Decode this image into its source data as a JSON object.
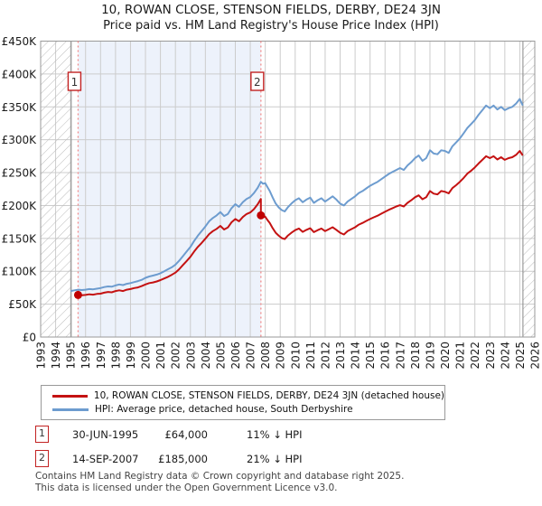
{
  "chart_data": {
    "type": "line",
    "title": "10, ROWAN CLOSE, STENSON FIELDS, DERBY, DE24 3JN",
    "subtitle": "Price paid vs. HM Land Registry's House Price Index (HPI)",
    "x_range": [
      1993,
      2026
    ],
    "y_range_gbp": [
      0,
      450000
    ],
    "grid": true,
    "legend_position": "bottom",
    "units": "series point values are GBP thousands",
    "x_tick_labels": [
      "1993",
      "1994",
      "1995",
      "1996",
      "1997",
      "1998",
      "1999",
      "2000",
      "2001",
      "2002",
      "2003",
      "2004",
      "2005",
      "2006",
      "2007",
      "2008",
      "2009",
      "2010",
      "2011",
      "2012",
      "2013",
      "2014",
      "2015",
      "2016",
      "2017",
      "2018",
      "2019",
      "2020",
      "2021",
      "2022",
      "2023",
      "2024",
      "2025",
      "2026"
    ],
    "y_tick_labels": [
      "£0",
      "£50K",
      "£100K",
      "£150K",
      "£200K",
      "£250K",
      "£300K",
      "£350K",
      "£400K",
      "£450K"
    ],
    "y_tick_step_thousands": 50,
    "series": [
      {
        "name": "10, ROWAN CLOSE, STENSON FIELDS, DERBY, DE24 3JN (detached house)",
        "color": "#c41212",
        "points": [
          [
            1995.5,
            64
          ],
          [
            1995.75,
            63.5
          ],
          [
            1996.0,
            64
          ],
          [
            1996.25,
            65
          ],
          [
            1996.5,
            64.5
          ],
          [
            1996.75,
            65.5
          ],
          [
            1997.0,
            66
          ],
          [
            1997.25,
            67.5
          ],
          [
            1997.5,
            68.5
          ],
          [
            1997.75,
            68
          ],
          [
            1998.0,
            70
          ],
          [
            1998.25,
            71
          ],
          [
            1998.5,
            70
          ],
          [
            1998.75,
            72
          ],
          [
            1999.0,
            73
          ],
          [
            1999.25,
            74.5
          ],
          [
            1999.5,
            75.5
          ],
          [
            1999.75,
            77.5
          ],
          [
            2000.0,
            80
          ],
          [
            2000.25,
            82
          ],
          [
            2000.5,
            83
          ],
          [
            2000.75,
            84.5
          ],
          [
            2001.0,
            86.5
          ],
          [
            2001.25,
            89
          ],
          [
            2001.5,
            91.5
          ],
          [
            2001.75,
            94.5
          ],
          [
            2002.0,
            98
          ],
          [
            2002.25,
            103
          ],
          [
            2002.5,
            109.5
          ],
          [
            2002.75,
            115.5
          ],
          [
            2003.0,
            122
          ],
          [
            2003.25,
            130
          ],
          [
            2003.5,
            137
          ],
          [
            2003.75,
            143
          ],
          [
            2004.0,
            149.5
          ],
          [
            2004.25,
            156.5
          ],
          [
            2004.5,
            161
          ],
          [
            2004.75,
            164.5
          ],
          [
            2005.0,
            169
          ],
          [
            2005.25,
            163.5
          ],
          [
            2005.5,
            166.5
          ],
          [
            2005.75,
            174.5
          ],
          [
            2006.0,
            179.5
          ],
          [
            2006.25,
            176
          ],
          [
            2006.5,
            182.5
          ],
          [
            2006.75,
            187
          ],
          [
            2007.0,
            189.5
          ],
          [
            2007.25,
            194.5
          ],
          [
            2007.5,
            202
          ],
          [
            2007.71,
            210
          ],
          [
            2007.71,
            185
          ],
          [
            2007.85,
            182
          ],
          [
            2008.0,
            183
          ],
          [
            2008.15,
            178
          ],
          [
            2008.3,
            173.5
          ],
          [
            2008.5,
            165.5
          ],
          [
            2008.7,
            158.5
          ],
          [
            2008.9,
            154
          ],
          [
            2009.1,
            150.5
          ],
          [
            2009.3,
            149
          ],
          [
            2009.5,
            154
          ],
          [
            2009.75,
            158.5
          ],
          [
            2010.0,
            162.5
          ],
          [
            2010.25,
            165
          ],
          [
            2010.5,
            160
          ],
          [
            2010.75,
            163
          ],
          [
            2011.0,
            165.5
          ],
          [
            2011.25,
            159.5
          ],
          [
            2011.5,
            162.5
          ],
          [
            2011.75,
            165
          ],
          [
            2012.0,
            161
          ],
          [
            2012.25,
            164
          ],
          [
            2012.5,
            167
          ],
          [
            2012.75,
            163
          ],
          [
            2013.0,
            158.5
          ],
          [
            2013.25,
            156
          ],
          [
            2013.5,
            161
          ],
          [
            2013.75,
            164
          ],
          [
            2014.0,
            167
          ],
          [
            2014.25,
            171
          ],
          [
            2014.5,
            173.5
          ],
          [
            2014.75,
            176.5
          ],
          [
            2015.0,
            179.5
          ],
          [
            2015.25,
            182
          ],
          [
            2015.5,
            184.5
          ],
          [
            2015.75,
            187.5
          ],
          [
            2016.0,
            190.5
          ],
          [
            2016.25,
            193.5
          ],
          [
            2016.5,
            196
          ],
          [
            2016.75,
            198.5
          ],
          [
            2017.0,
            200.5
          ],
          [
            2017.25,
            198.5
          ],
          [
            2017.5,
            204
          ],
          [
            2017.75,
            208
          ],
          [
            2018.0,
            212.5
          ],
          [
            2018.25,
            215.5
          ],
          [
            2018.5,
            209.5
          ],
          [
            2018.75,
            212.5
          ],
          [
            2019.0,
            222
          ],
          [
            2019.25,
            218
          ],
          [
            2019.5,
            217
          ],
          [
            2019.75,
            222
          ],
          [
            2020.0,
            221
          ],
          [
            2020.25,
            218.5
          ],
          [
            2020.5,
            226.5
          ],
          [
            2020.75,
            231
          ],
          [
            2021.0,
            236
          ],
          [
            2021.25,
            242
          ],
          [
            2021.5,
            248.5
          ],
          [
            2021.75,
            253
          ],
          [
            2022.0,
            258
          ],
          [
            2022.25,
            264
          ],
          [
            2022.5,
            269.5
          ],
          [
            2022.75,
            275
          ],
          [
            2023.0,
            272
          ],
          [
            2023.25,
            275
          ],
          [
            2023.5,
            270
          ],
          [
            2023.75,
            273.5
          ],
          [
            2024.0,
            269.5
          ],
          [
            2024.25,
            272
          ],
          [
            2024.5,
            273.5
          ],
          [
            2024.75,
            277
          ],
          [
            2025.0,
            283
          ],
          [
            2025.2,
            276
          ]
        ]
      },
      {
        "name": "HPI: Average price, detached house, South Derbyshire",
        "color": "#6d9ccf",
        "points": [
          [
            1995.0,
            70
          ],
          [
            1995.25,
            71
          ],
          [
            1995.5,
            72
          ],
          [
            1995.75,
            71.5
          ],
          [
            1996.0,
            72
          ],
          [
            1996.25,
            73
          ],
          [
            1996.5,
            72.5
          ],
          [
            1996.75,
            73.5
          ],
          [
            1997.0,
            74.5
          ],
          [
            1997.25,
            76
          ],
          [
            1997.5,
            77
          ],
          [
            1997.75,
            76.5
          ],
          [
            1998.0,
            78.5
          ],
          [
            1998.25,
            80
          ],
          [
            1998.5,
            79
          ],
          [
            1998.75,
            81
          ],
          [
            1999.0,
            82
          ],
          [
            1999.25,
            83.5
          ],
          [
            1999.5,
            85
          ],
          [
            1999.75,
            87
          ],
          [
            2000.0,
            90
          ],
          [
            2000.25,
            92
          ],
          [
            2000.5,
            93.5
          ],
          [
            2000.75,
            95
          ],
          [
            2001.0,
            97
          ],
          [
            2001.25,
            100
          ],
          [
            2001.5,
            103
          ],
          [
            2001.75,
            106
          ],
          [
            2002.0,
            110
          ],
          [
            2002.25,
            116
          ],
          [
            2002.5,
            123
          ],
          [
            2002.75,
            130
          ],
          [
            2003.0,
            137
          ],
          [
            2003.25,
            146
          ],
          [
            2003.5,
            154
          ],
          [
            2003.75,
            161
          ],
          [
            2004.0,
            168
          ],
          [
            2004.25,
            176
          ],
          [
            2004.5,
            181
          ],
          [
            2004.75,
            185
          ],
          [
            2005.0,
            190
          ],
          [
            2005.25,
            184
          ],
          [
            2005.5,
            187
          ],
          [
            2005.75,
            196
          ],
          [
            2006.0,
            202
          ],
          [
            2006.25,
            198
          ],
          [
            2006.5,
            205
          ],
          [
            2006.75,
            210
          ],
          [
            2007.0,
            213
          ],
          [
            2007.25,
            219
          ],
          [
            2007.5,
            227
          ],
          [
            2007.71,
            236
          ],
          [
            2007.85,
            233
          ],
          [
            2008.0,
            234
          ],
          [
            2008.15,
            228
          ],
          [
            2008.3,
            222
          ],
          [
            2008.5,
            212
          ],
          [
            2008.7,
            203
          ],
          [
            2008.9,
            197
          ],
          [
            2009.1,
            193
          ],
          [
            2009.3,
            191
          ],
          [
            2009.5,
            197
          ],
          [
            2009.75,
            203
          ],
          [
            2010.0,
            208
          ],
          [
            2010.25,
            211
          ],
          [
            2010.5,
            205
          ],
          [
            2010.75,
            209
          ],
          [
            2011.0,
            212
          ],
          [
            2011.25,
            204
          ],
          [
            2011.5,
            208
          ],
          [
            2011.75,
            211
          ],
          [
            2012.0,
            206
          ],
          [
            2012.25,
            210
          ],
          [
            2012.5,
            214
          ],
          [
            2012.75,
            209
          ],
          [
            2013.0,
            203
          ],
          [
            2013.25,
            200
          ],
          [
            2013.5,
            206
          ],
          [
            2013.75,
            210
          ],
          [
            2014.0,
            214
          ],
          [
            2014.25,
            219
          ],
          [
            2014.5,
            222
          ],
          [
            2014.75,
            226
          ],
          [
            2015.0,
            230
          ],
          [
            2015.25,
            233
          ],
          [
            2015.5,
            236
          ],
          [
            2015.75,
            240
          ],
          [
            2016.0,
            244
          ],
          [
            2016.25,
            248
          ],
          [
            2016.5,
            251
          ],
          [
            2016.75,
            254
          ],
          [
            2017.0,
            257
          ],
          [
            2017.25,
            254
          ],
          [
            2017.5,
            261
          ],
          [
            2017.75,
            266
          ],
          [
            2018.0,
            272
          ],
          [
            2018.25,
            276
          ],
          [
            2018.5,
            268
          ],
          [
            2018.75,
            272
          ],
          [
            2019.0,
            284
          ],
          [
            2019.25,
            279
          ],
          [
            2019.5,
            278
          ],
          [
            2019.75,
            284
          ],
          [
            2020.0,
            283
          ],
          [
            2020.25,
            280
          ],
          [
            2020.5,
            290
          ],
          [
            2020.75,
            296
          ],
          [
            2021.0,
            302
          ],
          [
            2021.25,
            310
          ],
          [
            2021.5,
            318
          ],
          [
            2021.75,
            324
          ],
          [
            2022.0,
            330
          ],
          [
            2022.25,
            338
          ],
          [
            2022.5,
            345
          ],
          [
            2022.75,
            352
          ],
          [
            2023.0,
            348
          ],
          [
            2023.25,
            352
          ],
          [
            2023.5,
            346
          ],
          [
            2023.75,
            350
          ],
          [
            2024.0,
            345
          ],
          [
            2024.25,
            348
          ],
          [
            2024.5,
            350
          ],
          [
            2024.75,
            355
          ],
          [
            2025.0,
            362
          ],
          [
            2025.2,
            352
          ]
        ]
      }
    ],
    "sales": [
      {
        "n": "1",
        "date": "30-JUN-1995",
        "x": 1995.5,
        "price_thousands": 64,
        "price_label": "£64,000",
        "vs_hpi": "11% ↓ HPI"
      },
      {
        "n": "2",
        "date": "14-SEP-2007",
        "x": 2007.71,
        "price_thousands": 185,
        "price_label": "£185,000",
        "vs_hpi": "21% ↓ HPI"
      }
    ],
    "no_data_regions": [
      [
        1993,
        1995.04
      ],
      [
        2025.21,
        2026
      ]
    ],
    "highlight_region": [
      1995.5,
      2007.71
    ],
    "colors": {
      "highlight": "#edf2fb",
      "sale_line": "#f28b8b",
      "grid": "#cccccc",
      "hatch": "#bbbbbb",
      "hatch_edge": "#888888",
      "border": "#9a9a9a",
      "marker_dot": "#c00000",
      "marker_box_border": "#c22222",
      "tick_text": "#1a1a1a"
    }
  },
  "footer": {
    "line1": "Contains HM Land Registry data © Crown copyright and database right 2025.",
    "line2": "This data is licensed under the Open Government Licence v3.0."
  }
}
